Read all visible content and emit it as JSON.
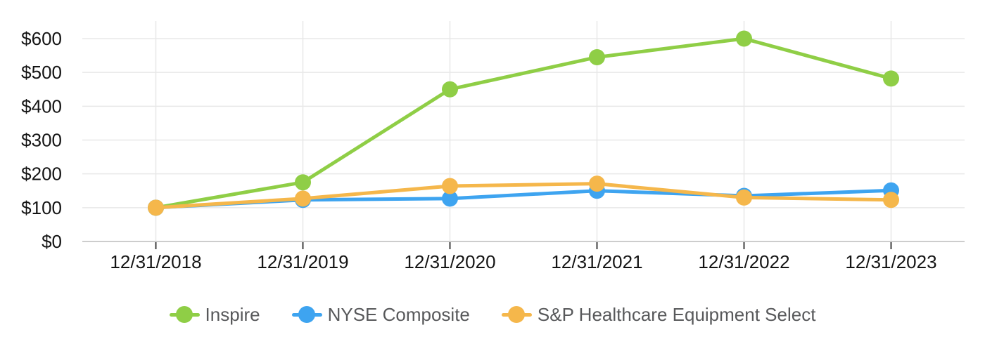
{
  "chart_data": {
    "type": "line",
    "title": "",
    "x_categories": [
      "12/31/2018",
      "12/31/2019",
      "12/31/2020",
      "12/31/2021",
      "12/31/2022",
      "12/31/2023"
    ],
    "y_axis": {
      "min": 0,
      "max": 600,
      "tick_step": 100,
      "ticks": [
        {
          "value": 0,
          "label": "$0"
        },
        {
          "value": 100,
          "label": "$100"
        },
        {
          "value": 200,
          "label": "$200"
        },
        {
          "value": 300,
          "label": "$300"
        },
        {
          "value": 400,
          "label": "$400"
        },
        {
          "value": 500,
          "label": "$500"
        },
        {
          "value": 600,
          "label": "$600"
        }
      ]
    },
    "series": [
      {
        "name": "Inspire",
        "color": "#8FCE46",
        "values": [
          100,
          175,
          450,
          545,
          600,
          482
        ]
      },
      {
        "name": "NYSE Composite",
        "color": "#3EA4F0",
        "values": [
          100,
          123,
          127,
          150,
          135,
          151
        ]
      },
      {
        "name": "S&P Healthcare Equipment Select",
        "color": "#F5B74B",
        "values": [
          100,
          127,
          164,
          171,
          130,
          123
        ]
      }
    ],
    "grid": true,
    "legend_position": "bottom"
  },
  "colors": {
    "background": "#FFFFFF",
    "grid": "#E8E8E8",
    "axis_line": "#CDCDCD",
    "tick_mark": "#3F3F3F",
    "axis_label": "#141414",
    "legend_text": "#58595B"
  }
}
